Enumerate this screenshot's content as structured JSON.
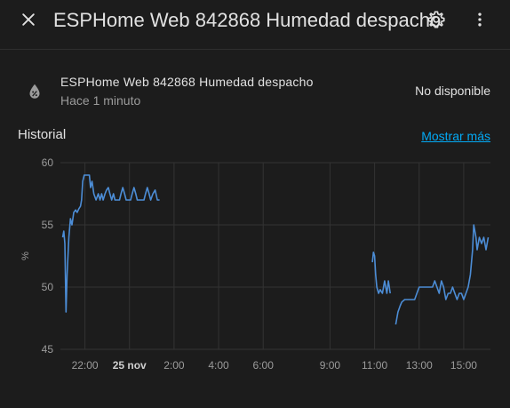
{
  "dialog": {
    "title": "ESPHome Web 842868 Humedad despacho",
    "close_icon": "close-icon",
    "settings_icon": "gear-icon",
    "menu_icon": "more-vertical-icon"
  },
  "entity": {
    "icon": "water-percent-off-icon",
    "name": "ESPHome Web 842868 Humedad despacho",
    "last_changed": "Hace 1 minuto",
    "state": "No disponible"
  },
  "history": {
    "title": "Historial",
    "show_more": "Mostrar más"
  },
  "colors": {
    "background": "#1c1c1c",
    "line": "#4c8dd6",
    "link": "#03a9f4"
  },
  "chart_data": {
    "type": "line",
    "ylabel": "%",
    "ylim": [
      45,
      60
    ],
    "yticks": [
      "60",
      "55",
      "50",
      "45"
    ],
    "xticks": [
      "22:00",
      "25 nov",
      "2:00",
      "4:00",
      "6:00",
      "9:00",
      "11:00",
      "13:00",
      "15:00"
    ],
    "xticks_hours": [
      22,
      24,
      26,
      28,
      30,
      33,
      35,
      37,
      39
    ],
    "bold_tick": "25 nov",
    "grid": true,
    "series": [
      {
        "segments": [
          [
            [
              21.0,
              54
            ],
            [
              21.05,
              54.5
            ],
            [
              21.1,
              53.5
            ],
            [
              21.15,
              48
            ],
            [
              21.2,
              51
            ],
            [
              21.28,
              54
            ],
            [
              21.35,
              55.5
            ],
            [
              21.42,
              55
            ],
            [
              21.5,
              56
            ],
            [
              21.58,
              56.2
            ],
            [
              21.65,
              56
            ],
            [
              21.73,
              56.3
            ],
            [
              21.8,
              56.5
            ],
            [
              21.85,
              57
            ],
            [
              21.9,
              58.5
            ],
            [
              21.97,
              59
            ],
            [
              22.05,
              59
            ],
            [
              22.12,
              59
            ],
            [
              22.2,
              59
            ],
            [
              22.25,
              58
            ],
            [
              22.32,
              58.5
            ],
            [
              22.4,
              57.5
            ],
            [
              22.5,
              57
            ],
            [
              22.6,
              57.5
            ],
            [
              22.68,
              57
            ],
            [
              22.75,
              57.5
            ],
            [
              22.82,
              57
            ],
            [
              22.9,
              57.5
            ],
            [
              22.97,
              57.8
            ],
            [
              23.05,
              58
            ],
            [
              23.12,
              57.5
            ],
            [
              23.2,
              57
            ],
            [
              23.28,
              57.5
            ],
            [
              23.35,
              57
            ],
            [
              23.45,
              57
            ],
            [
              23.55,
              57
            ],
            [
              23.62,
              57.5
            ],
            [
              23.7,
              58
            ],
            [
              23.78,
              57.5
            ],
            [
              23.85,
              57
            ],
            [
              23.95,
              57
            ],
            [
              24.05,
              57
            ],
            [
              24.12,
              57.5
            ],
            [
              24.2,
              58
            ],
            [
              24.28,
              57.5
            ],
            [
              24.35,
              57
            ],
            [
              24.45,
              57
            ],
            [
              24.55,
              57
            ],
            [
              24.65,
              57
            ],
            [
              24.72,
              57.5
            ],
            [
              24.8,
              58
            ],
            [
              24.88,
              57.5
            ],
            [
              24.95,
              57
            ],
            [
              25.05,
              57.5
            ],
            [
              25.15,
              57.8
            ],
            [
              25.25,
              57
            ],
            [
              25.35,
              57
            ]
          ],
          [
            [
              34.9,
              52
            ],
            [
              34.95,
              52.8
            ],
            [
              35.0,
              52.5
            ],
            [
              35.05,
              51
            ],
            [
              35.1,
              50
            ],
            [
              35.18,
              49.5
            ],
            [
              35.25,
              49.8
            ],
            [
              35.35,
              49.5
            ],
            [
              35.45,
              50.5
            ],
            [
              35.55,
              49.5
            ],
            [
              35.62,
              50.5
            ],
            [
              35.7,
              49.5
            ]
          ],
          [
            [
              35.95,
              47
            ],
            [
              36.05,
              48
            ],
            [
              36.15,
              48.5
            ],
            [
              36.22,
              48.8
            ],
            [
              36.35,
              49
            ],
            [
              36.5,
              49
            ],
            [
              36.65,
              49
            ],
            [
              36.8,
              49
            ],
            [
              36.9,
              49.5
            ],
            [
              37.0,
              50
            ],
            [
              37.15,
              50
            ],
            [
              37.3,
              50
            ],
            [
              37.45,
              50
            ],
            [
              37.6,
              50
            ],
            [
              37.7,
              50.5
            ],
            [
              37.8,
              50
            ],
            [
              37.9,
              49.5
            ],
            [
              38.0,
              50.5
            ],
            [
              38.1,
              50
            ],
            [
              38.2,
              49
            ],
            [
              38.3,
              49.5
            ],
            [
              38.4,
              49.5
            ],
            [
              38.5,
              50
            ],
            [
              38.6,
              49.5
            ],
            [
              38.7,
              49
            ],
            [
              38.8,
              49.5
            ],
            [
              38.9,
              49.5
            ],
            [
              39.0,
              49
            ],
            [
              39.1,
              49.5
            ],
            [
              39.2,
              50
            ],
            [
              39.3,
              51
            ],
            [
              39.4,
              53
            ],
            [
              39.45,
              55
            ],
            [
              39.55,
              54
            ],
            [
              39.6,
              53
            ],
            [
              39.7,
              54
            ],
            [
              39.8,
              53.5
            ],
            [
              39.9,
              54
            ],
            [
              40.0,
              53
            ],
            [
              40.1,
              54
            ]
          ]
        ]
      }
    ]
  }
}
